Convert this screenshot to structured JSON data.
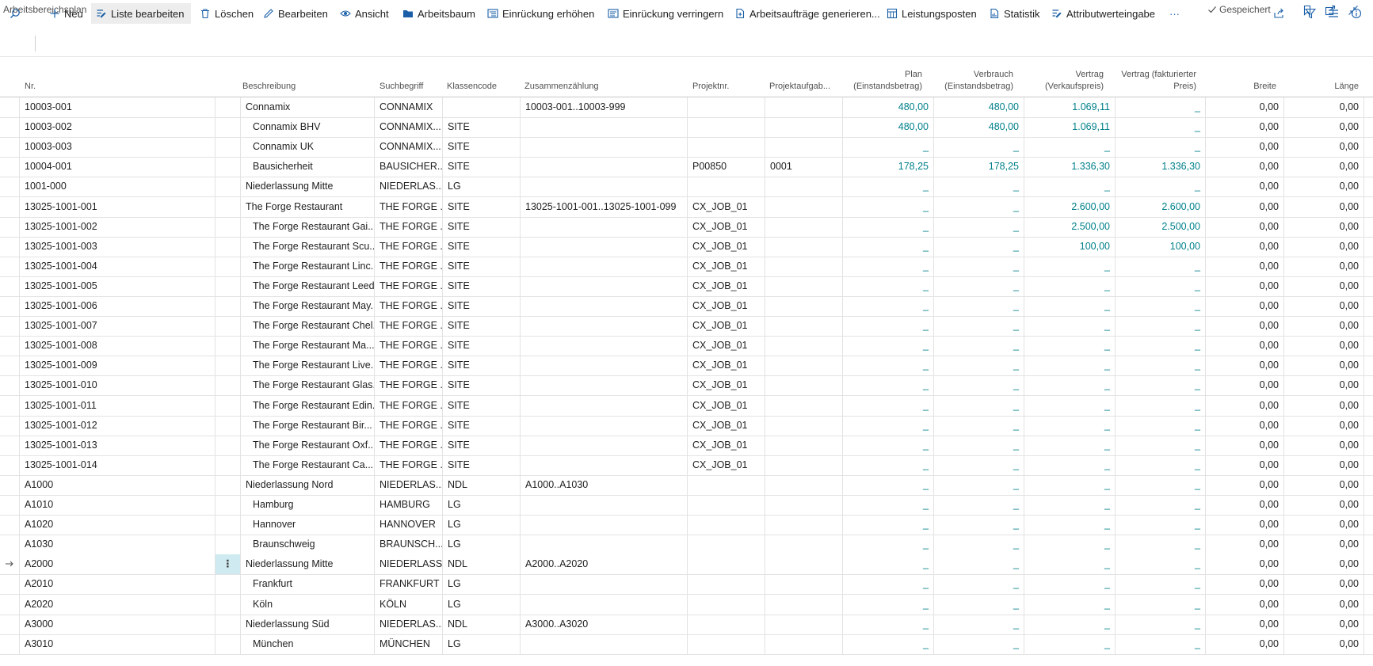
{
  "window": {
    "title": "Arbeitsbereichsplan",
    "saved_label": "Gespeichert"
  },
  "actions": [
    {
      "label": "Neu",
      "icon": "plus-icon"
    },
    {
      "label": "Liste bearbeiten",
      "icon": "edit-list-icon"
    },
    {
      "label": "Löschen",
      "icon": "trash-icon"
    },
    {
      "label": "Bearbeiten",
      "icon": "pencil-icon"
    },
    {
      "label": "Ansicht",
      "icon": "eye-icon"
    },
    {
      "label": "Arbeitsbaum",
      "icon": "folder-icon"
    },
    {
      "label": "Einrückung erhöhen",
      "icon": "indent-icon"
    },
    {
      "label": "Einrückung verringern",
      "icon": "outdent-icon"
    },
    {
      "label": "Arbeitsaufträge generieren...",
      "icon": "generate-icon"
    },
    {
      "label": "Leistungsposten",
      "icon": "ledger-icon"
    },
    {
      "label": "Statistik",
      "icon": "statistics-icon"
    },
    {
      "label": "Attributwerteingabe",
      "icon": "attribute-icon"
    }
  ],
  "more_label": "···",
  "columns": {
    "nr": "Nr.",
    "beschreibung": "Beschreibung",
    "suchbegriff": "Suchbegriff",
    "klassencode": "Klassencode",
    "zusammenzaehlung": "Zusammenzählung",
    "projektnr": "Projektnr.",
    "projektaufgabe": "Projektaufgab...",
    "plan_1": "Plan",
    "plan_2": "(Einstandsbetrag)",
    "verbrauch_1": "Verbrauch",
    "verbrauch_2": "(Einstandsbetrag)",
    "vertrag_1": "Vertrag",
    "vertrag_2": "(Verkaufspreis)",
    "vertragf_1": "Vertrag (fakturierter",
    "vertragf_2": "Preis)",
    "breite": "Breite",
    "laenge": "Länge"
  },
  "rows": [
    {
      "nr": "10003-001",
      "beschreibung": "Connamix",
      "indent": 0,
      "such": "CONNAMIX",
      "klasse": "",
      "zus": "10003-001..10003-999",
      "projekt": "",
      "aufgabe": "",
      "plan": "480,00",
      "verbrauch": "480,00",
      "vertrag": "1.069,11",
      "vertragf": "_",
      "breite": "0,00",
      "laenge": "0,00"
    },
    {
      "nr": "10003-002",
      "beschreibung": "Connamix BHV",
      "indent": 1,
      "such": "CONNAMIX...",
      "klasse": "SITE",
      "zus": "",
      "projekt": "",
      "aufgabe": "",
      "plan": "480,00",
      "verbrauch": "480,00",
      "vertrag": "1.069,11",
      "vertragf": "_",
      "breite": "0,00",
      "laenge": "0,00"
    },
    {
      "nr": "10003-003",
      "beschreibung": "Connamix UK",
      "indent": 1,
      "such": "CONNAMIX...",
      "klasse": "SITE",
      "zus": "",
      "projekt": "",
      "aufgabe": "",
      "plan": "_",
      "verbrauch": "_",
      "vertrag": "_",
      "vertragf": "_",
      "breite": "0,00",
      "laenge": "0,00"
    },
    {
      "nr": "10004-001",
      "beschreibung": "Bausicherheit",
      "indent": 1,
      "such": "BAUSICHER...",
      "klasse": "SITE",
      "zus": "",
      "projekt": "P00850",
      "aufgabe": "0001",
      "plan": "178,25",
      "verbrauch": "178,25",
      "vertrag": "1.336,30",
      "vertragf": "1.336,30",
      "breite": "0,00",
      "laenge": "0,00"
    },
    {
      "nr": "1001-000",
      "beschreibung": "Niederlassung Mitte",
      "indent": 0,
      "such": "NIEDERLAS...",
      "klasse": "LG",
      "zus": "",
      "projekt": "",
      "aufgabe": "",
      "plan": "_",
      "verbrauch": "_",
      "vertrag": "_",
      "vertragf": "_",
      "breite": "0,00",
      "laenge": "0,00"
    },
    {
      "nr": "13025-1001-001",
      "beschreibung": "The Forge Restaurant",
      "indent": 0,
      "such": "THE FORGE ...",
      "klasse": "SITE",
      "zus": "13025-1001-001..13025-1001-099",
      "projekt": "CX_JOB_01",
      "aufgabe": "",
      "plan": "_",
      "verbrauch": "_",
      "vertrag": "2.600,00",
      "vertragf": "2.600,00",
      "breite": "0,00",
      "laenge": "0,00"
    },
    {
      "nr": "13025-1001-002",
      "beschreibung": "The Forge Restaurant Gai...",
      "indent": 1,
      "such": "THE FORGE ...",
      "klasse": "SITE",
      "zus": "",
      "projekt": "CX_JOB_01",
      "aufgabe": "",
      "plan": "_",
      "verbrauch": "_",
      "vertrag": "2.500,00",
      "vertragf": "2.500,00",
      "breite": "0,00",
      "laenge": "0,00"
    },
    {
      "nr": "13025-1001-003",
      "beschreibung": "The Forge Restaurant Scu...",
      "indent": 1,
      "such": "THE FORGE ...",
      "klasse": "SITE",
      "zus": "",
      "projekt": "CX_JOB_01",
      "aufgabe": "",
      "plan": "_",
      "verbrauch": "_",
      "vertrag": "100,00",
      "vertragf": "100,00",
      "breite": "0,00",
      "laenge": "0,00"
    },
    {
      "nr": "13025-1001-004",
      "beschreibung": "The Forge Restaurant Linc...",
      "indent": 1,
      "such": "THE FORGE ...",
      "klasse": "SITE",
      "zus": "",
      "projekt": "CX_JOB_01",
      "aufgabe": "",
      "plan": "_",
      "verbrauch": "_",
      "vertrag": "_",
      "vertragf": "_",
      "breite": "0,00",
      "laenge": "0,00"
    },
    {
      "nr": "13025-1001-005",
      "beschreibung": "The Forge Restaurant Leeds",
      "indent": 1,
      "such": "THE FORGE ...",
      "klasse": "SITE",
      "zus": "",
      "projekt": "CX_JOB_01",
      "aufgabe": "",
      "plan": "_",
      "verbrauch": "_",
      "vertrag": "_",
      "vertragf": "_",
      "breite": "0,00",
      "laenge": "0,00"
    },
    {
      "nr": "13025-1001-006",
      "beschreibung": "The Forge Restaurant May...",
      "indent": 1,
      "such": "THE FORGE ...",
      "klasse": "SITE",
      "zus": "",
      "projekt": "CX_JOB_01",
      "aufgabe": "",
      "plan": "_",
      "verbrauch": "_",
      "vertrag": "_",
      "vertragf": "_",
      "breite": "0,00",
      "laenge": "0,00"
    },
    {
      "nr": "13025-1001-007",
      "beschreibung": "The Forge Restaurant Chel...",
      "indent": 1,
      "such": "THE FORGE ...",
      "klasse": "SITE",
      "zus": "",
      "projekt": "CX_JOB_01",
      "aufgabe": "",
      "plan": "_",
      "verbrauch": "_",
      "vertrag": "_",
      "vertragf": "_",
      "breite": "0,00",
      "laenge": "0,00"
    },
    {
      "nr": "13025-1001-008",
      "beschreibung": "The Forge Restaurant Ma...",
      "indent": 1,
      "such": "THE FORGE ...",
      "klasse": "SITE",
      "zus": "",
      "projekt": "CX_JOB_01",
      "aufgabe": "",
      "plan": "_",
      "verbrauch": "_",
      "vertrag": "_",
      "vertragf": "_",
      "breite": "0,00",
      "laenge": "0,00"
    },
    {
      "nr": "13025-1001-009",
      "beschreibung": "The Forge Restaurant Live...",
      "indent": 1,
      "such": "THE FORGE ...",
      "klasse": "SITE",
      "zus": "",
      "projekt": "CX_JOB_01",
      "aufgabe": "",
      "plan": "_",
      "verbrauch": "_",
      "vertrag": "_",
      "vertragf": "_",
      "breite": "0,00",
      "laenge": "0,00"
    },
    {
      "nr": "13025-1001-010",
      "beschreibung": "The Forge Restaurant Glas...",
      "indent": 1,
      "such": "THE FORGE ...",
      "klasse": "SITE",
      "zus": "",
      "projekt": "CX_JOB_01",
      "aufgabe": "",
      "plan": "_",
      "verbrauch": "_",
      "vertrag": "_",
      "vertragf": "_",
      "breite": "0,00",
      "laenge": "0,00"
    },
    {
      "nr": "13025-1001-011",
      "beschreibung": "The Forge Restaurant Edin...",
      "indent": 1,
      "such": "THE FORGE ...",
      "klasse": "SITE",
      "zus": "",
      "projekt": "CX_JOB_01",
      "aufgabe": "",
      "plan": "_",
      "verbrauch": "_",
      "vertrag": "_",
      "vertragf": "_",
      "breite": "0,00",
      "laenge": "0,00"
    },
    {
      "nr": "13025-1001-012",
      "beschreibung": "The Forge Restaurant Bir...",
      "indent": 1,
      "such": "THE FORGE ...",
      "klasse": "SITE",
      "zus": "",
      "projekt": "CX_JOB_01",
      "aufgabe": "",
      "plan": "_",
      "verbrauch": "_",
      "vertrag": "_",
      "vertragf": "_",
      "breite": "0,00",
      "laenge": "0,00"
    },
    {
      "nr": "13025-1001-013",
      "beschreibung": "The Forge Restaurant Oxf...",
      "indent": 1,
      "such": "THE FORGE ...",
      "klasse": "SITE",
      "zus": "",
      "projekt": "CX_JOB_01",
      "aufgabe": "",
      "plan": "_",
      "verbrauch": "_",
      "vertrag": "_",
      "vertragf": "_",
      "breite": "0,00",
      "laenge": "0,00"
    },
    {
      "nr": "13025-1001-014",
      "beschreibung": "The Forge Restaurant Ca...",
      "indent": 1,
      "such": "THE FORGE ...",
      "klasse": "SITE",
      "zus": "",
      "projekt": "CX_JOB_01",
      "aufgabe": "",
      "plan": "_",
      "verbrauch": "_",
      "vertrag": "_",
      "vertragf": "_",
      "breite": "0,00",
      "laenge": "0,00"
    },
    {
      "nr": "A1000",
      "beschreibung": "Niederlassung Nord",
      "indent": 0,
      "such": "NIEDERLAS...",
      "klasse": "NDL",
      "zus": "A1000..A1030",
      "projekt": "",
      "aufgabe": "",
      "plan": "_",
      "verbrauch": "_",
      "vertrag": "_",
      "vertragf": "_",
      "breite": "0,00",
      "laenge": "0,00"
    },
    {
      "nr": "A1010",
      "beschreibung": "Hamburg",
      "indent": 1,
      "such": "HAMBURG",
      "klasse": "LG",
      "zus": "",
      "projekt": "",
      "aufgabe": "",
      "plan": "_",
      "verbrauch": "_",
      "vertrag": "_",
      "vertragf": "_",
      "breite": "0,00",
      "laenge": "0,00"
    },
    {
      "nr": "A1020",
      "beschreibung": "Hannover",
      "indent": 1,
      "such": "HANNOVER",
      "klasse": "LG",
      "zus": "",
      "projekt": "",
      "aufgabe": "",
      "plan": "_",
      "verbrauch": "_",
      "vertrag": "_",
      "vertragf": "_",
      "breite": "0,00",
      "laenge": "0,00"
    },
    {
      "nr": "A1030",
      "beschreibung": "Braunschweig",
      "indent": 1,
      "such": "BRAUNSCH...",
      "klasse": "LG",
      "zus": "",
      "projekt": "",
      "aufgabe": "",
      "plan": "_",
      "verbrauch": "_",
      "vertrag": "_",
      "vertragf": "_",
      "breite": "0,00",
      "laenge": "0,00"
    },
    {
      "nr": "A2000",
      "beschreibung": "Niederlassung Mitte",
      "indent": 0,
      "such": "NIEDERLASSU",
      "klasse": "NDL",
      "zus": "A2000..A2020",
      "projekt": "",
      "aufgabe": "",
      "plan": "_",
      "verbrauch": "_",
      "vertrag": "_",
      "vertragf": "_",
      "breite": "0,00",
      "laenge": "0,00",
      "selected": true
    },
    {
      "nr": "A2010",
      "beschreibung": "Frankfurt",
      "indent": 1,
      "such": "FRANKFURT",
      "klasse": "LG",
      "zus": "",
      "projekt": "",
      "aufgabe": "",
      "plan": "_",
      "verbrauch": "_",
      "vertrag": "_",
      "vertragf": "_",
      "breite": "0,00",
      "laenge": "0,00"
    },
    {
      "nr": "A2020",
      "beschreibung": "Köln",
      "indent": 1,
      "such": "KÖLN",
      "klasse": "LG",
      "zus": "",
      "projekt": "",
      "aufgabe": "",
      "plan": "_",
      "verbrauch": "_",
      "vertrag": "_",
      "vertragf": "_",
      "breite": "0,00",
      "laenge": "0,00"
    },
    {
      "nr": "A3000",
      "beschreibung": "Niederlassung Süd",
      "indent": 0,
      "such": "NIEDERLAS...",
      "klasse": "NDL",
      "zus": "A3000..A3020",
      "projekt": "",
      "aufgabe": "",
      "plan": "_",
      "verbrauch": "_",
      "vertrag": "_",
      "vertragf": "_",
      "breite": "0,00",
      "laenge": "0,00"
    },
    {
      "nr": "A3010",
      "beschreibung": "München",
      "indent": 1,
      "such": "MÜNCHEN",
      "klasse": "LG",
      "zus": "",
      "projekt": "",
      "aufgabe": "",
      "plan": "_",
      "verbrauch": "_",
      "vertrag": "_",
      "vertragf": "_",
      "breite": "0,00",
      "laenge": "0,00"
    }
  ],
  "colors": {
    "accent": "#00808a",
    "selected_cell": "#cfeaf0"
  }
}
